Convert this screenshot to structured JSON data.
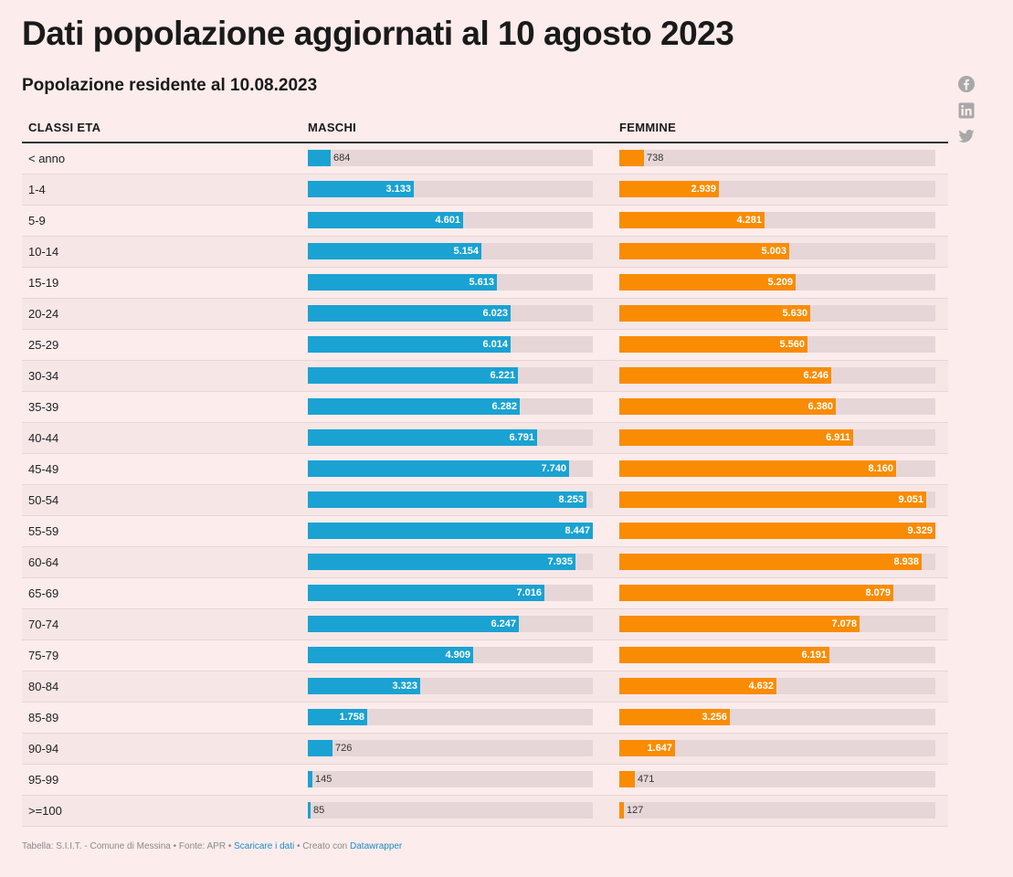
{
  "title": "Dati popolazione aggiornati al 10 agosto 2023",
  "subtitle": "Popolazione residente al 10.08.2023",
  "share": [
    "facebook-icon",
    "linkedin-icon",
    "twitter-icon"
  ],
  "colors": {
    "maschi": "#1aa2d2",
    "femmine": "#f98c02",
    "track": "#e6d6d7",
    "background": "#fcecec"
  },
  "chart_data": {
    "type": "table",
    "columns": [
      "CLASSI ETA",
      "MASCHI",
      "FEMMINE"
    ],
    "max": {
      "maschi": 8447,
      "femmine": 9329
    },
    "rows": [
      {
        "label": "< anno",
        "maschi": 684,
        "maschi_label": "684",
        "femmine": 738,
        "femmine_label": "738"
      },
      {
        "label": "1-4",
        "maschi": 3133,
        "maschi_label": "3.133",
        "femmine": 2939,
        "femmine_label": "2.939"
      },
      {
        "label": "5-9",
        "maschi": 4601,
        "maschi_label": "4.601",
        "femmine": 4281,
        "femmine_label": "4.281"
      },
      {
        "label": "10-14",
        "maschi": 5154,
        "maschi_label": "5.154",
        "femmine": 5003,
        "femmine_label": "5.003"
      },
      {
        "label": "15-19",
        "maschi": 5613,
        "maschi_label": "5.613",
        "femmine": 5209,
        "femmine_label": "5.209"
      },
      {
        "label": "20-24",
        "maschi": 6023,
        "maschi_label": "6.023",
        "femmine": 5630,
        "femmine_label": "5.630"
      },
      {
        "label": "25-29",
        "maschi": 6014,
        "maschi_label": "6.014",
        "femmine": 5560,
        "femmine_label": "5.560"
      },
      {
        "label": "30-34",
        "maschi": 6221,
        "maschi_label": "6.221",
        "femmine": 6246,
        "femmine_label": "6.246"
      },
      {
        "label": "35-39",
        "maschi": 6282,
        "maschi_label": "6.282",
        "femmine": 6380,
        "femmine_label": "6.380"
      },
      {
        "label": "40-44",
        "maschi": 6791,
        "maschi_label": "6.791",
        "femmine": 6911,
        "femmine_label": "6.911"
      },
      {
        "label": "45-49",
        "maschi": 7740,
        "maschi_label": "7.740",
        "femmine": 8160,
        "femmine_label": "8.160"
      },
      {
        "label": "50-54",
        "maschi": 8253,
        "maschi_label": "8.253",
        "femmine": 9051,
        "femmine_label": "9.051"
      },
      {
        "label": "55-59",
        "maschi": 8447,
        "maschi_label": "8.447",
        "femmine": 9329,
        "femmine_label": "9.329"
      },
      {
        "label": "60-64",
        "maschi": 7935,
        "maschi_label": "7.935",
        "femmine": 8938,
        "femmine_label": "8.938"
      },
      {
        "label": "65-69",
        "maschi": 7016,
        "maschi_label": "7.016",
        "femmine": 8079,
        "femmine_label": "8.079"
      },
      {
        "label": "70-74",
        "maschi": 6247,
        "maschi_label": "6.247",
        "femmine": 7078,
        "femmine_label": "7.078"
      },
      {
        "label": "75-79",
        "maschi": 4909,
        "maschi_label": "4.909",
        "femmine": 6191,
        "femmine_label": "6.191"
      },
      {
        "label": "80-84",
        "maschi": 3323,
        "maschi_label": "3.323",
        "femmine": 4632,
        "femmine_label": "4.632"
      },
      {
        "label": "85-89",
        "maschi": 1758,
        "maschi_label": "1.758",
        "femmine": 3256,
        "femmine_label": "3.256"
      },
      {
        "label": "90-94",
        "maschi": 726,
        "maschi_label": "726",
        "femmine": 1647,
        "femmine_label": "1.647"
      },
      {
        "label": "95-99",
        "maschi": 145,
        "maschi_label": "145",
        "femmine": 471,
        "femmine_label": "471"
      },
      {
        "label": ">=100",
        "maschi": 85,
        "maschi_label": "85",
        "femmine": 127,
        "femmine_label": "127"
      }
    ]
  },
  "footer": {
    "text": "Tabella: S.I.I.T. - Comune di Messina • Fonte: APR • ",
    "download_link": "Scaricare i dati",
    "created_text": " • Creato con ",
    "tool_link": "Datawrapper"
  }
}
